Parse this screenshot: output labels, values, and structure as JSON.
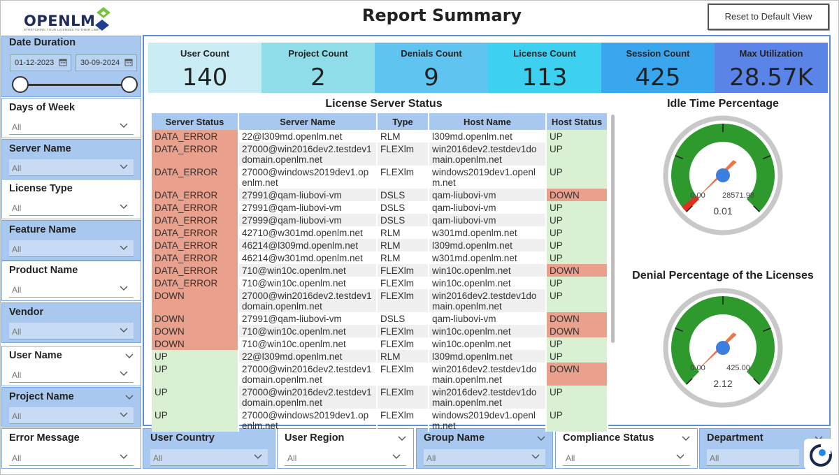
{
  "header": {
    "logo_text": "OPENLM",
    "logo_tagline": "STRETCHING YOUR LICENSES TO THEIR LIMIT",
    "title": "Report Summary",
    "reset_label": "Reset to Default View"
  },
  "filters": {
    "date_duration": {
      "label": "Date Duration",
      "start": "01-12-2023",
      "end": "30-09-2024"
    },
    "days_of_week": {
      "label": "Days of Week",
      "value": "All"
    },
    "server_name": {
      "label": "Server Name",
      "value": "All"
    },
    "license_type": {
      "label": "License Type",
      "value": "All"
    },
    "feature_name": {
      "label": "Feature Name",
      "value": "All"
    },
    "product_name": {
      "label": "Product Name",
      "value": "All"
    },
    "vendor": {
      "label": "Vendor",
      "value": "All"
    },
    "user_name": {
      "label": "User Name",
      "value": "All"
    },
    "project_name": {
      "label": "Project Name",
      "value": "All"
    },
    "error_message": {
      "label": "Error Message",
      "value": "All"
    },
    "user_country": {
      "label": "User Country",
      "value": "All"
    },
    "user_region": {
      "label": "User Region",
      "value": "All"
    },
    "group_name": {
      "label": "Group Name",
      "value": "All"
    },
    "compliance_status": {
      "label": "Compliance Status",
      "value": "All"
    },
    "department": {
      "label": "Department",
      "value": "All"
    }
  },
  "cards": [
    {
      "label": "User Count",
      "value": "140",
      "color": "#c9ecf5"
    },
    {
      "label": "Project Count",
      "value": "2",
      "color": "#8fdde8"
    },
    {
      "label": "Denials Count",
      "value": "9",
      "color": "#5fc4f0"
    },
    {
      "label": "License Count",
      "value": "113",
      "color": "#3dd0f0"
    },
    {
      "label": "Session Count",
      "value": "425",
      "color": "#3aa6ee"
    },
    {
      "label": "Max Utilization",
      "value": "28.57K",
      "color": "#5a84e8"
    }
  ],
  "table": {
    "title": "License Server Status",
    "columns": [
      "Server Status",
      "Server Name",
      "Type",
      "Host Name",
      "Host Status"
    ],
    "rows": [
      [
        "DATA_ERROR",
        "22@l309md.openlm.net",
        "RLM",
        "l309md.openlm.net",
        "UP"
      ],
      [
        "DATA_ERROR",
        "27000@win2016dev2.testdev1domain.openlm.net",
        "FLEXlm",
        "win2016dev2.testdev1domain.openlm.net",
        "UP"
      ],
      [
        "DATA_ERROR",
        "27000@windows2019dev1.openlm.net",
        "FLEXlm",
        "windows2019dev1.openlm.net",
        "UP"
      ],
      [
        "DATA_ERROR",
        "27991@qam-liubovi-vm",
        "DSLS",
        "qam-liubovi-vm",
        "DOWN"
      ],
      [
        "DATA_ERROR",
        "27991@qam-liubovi-vm",
        "DSLS",
        "qam-liubovi-vm",
        "UP"
      ],
      [
        "DATA_ERROR",
        "27999@qam-liubovi-vm",
        "DSLS",
        "qam-liubovi-vm",
        "UP"
      ],
      [
        "DATA_ERROR",
        "42710@w301md.openlm.net",
        "RLM",
        "w301md.openlm.net",
        "UP"
      ],
      [
        "DATA_ERROR",
        "46214@l309md.openlm.net",
        "RLM",
        "l309md.openlm.net",
        "UP"
      ],
      [
        "DATA_ERROR",
        "46214@w301md.openlm.net",
        "RLM",
        "w301md.openlm.net",
        "UP"
      ],
      [
        "DATA_ERROR",
        "710@win10c.openlm.net",
        "FLEXlm",
        "win10c.openlm.net",
        "DOWN"
      ],
      [
        "DATA_ERROR",
        "710@win10c.openlm.net",
        "FLEXlm",
        "win10c.openlm.net",
        "UP"
      ],
      [
        "DOWN",
        "27000@win2016dev2.testdev1domain.openlm.net",
        "FLEXlm",
        "win2016dev2.testdev1domain.openlm.net",
        "UP"
      ],
      [
        "DOWN",
        "27991@qam-liubovi-vm",
        "DSLS",
        "qam-liubovi-vm",
        "DOWN"
      ],
      [
        "DOWN",
        "710@win10c.openlm.net",
        "FLEXlm",
        "win10c.openlm.net",
        "DOWN"
      ],
      [
        "DOWN",
        "710@win10c.openlm.net",
        "FLEXlm",
        "win10c.openlm.net",
        "UP"
      ],
      [
        "UP",
        "22@l309md.openlm.net",
        "RLM",
        "l309md.openlm.net",
        "UP"
      ],
      [
        "UP",
        "27000@win2016dev2.testdev1domain.openlm.net",
        "FLEXlm",
        "win2016dev2.testdev1domain.openlm.net",
        "DOWN"
      ],
      [
        "UP",
        "27000@win2016dev2.testdev1domain.openlm.net",
        "FLEXlm",
        "win2016dev2.testdev1domain.openlm.net",
        "UP"
      ],
      [
        "UP",
        "27000@windows2019dev1.openlm.net",
        "FLEXlm",
        "windows2019dev1.openlm.net",
        "UP"
      ]
    ]
  },
  "gauges": [
    {
      "title": "Idle Time Percentage",
      "min": "0.00",
      "max": "28571.98",
      "value": "0.01",
      "fill_fraction": 4e-07,
      "target_fraction": 0.006
    },
    {
      "title": "Denial Percentage of the Licenses",
      "min": "0.00",
      "max": "425.00",
      "value": "2.12",
      "fill_fraction": 0.005,
      "target_fraction": 0.005
    }
  ],
  "colors": {
    "slicer_blue": "#a9c8f0",
    "panel_border": "#5b8fd0",
    "status_bad": "#e9a08c",
    "status_good": "#d9f0d3",
    "gauge_green": "#2e9a2e",
    "gauge_red": "#e0301e",
    "needle": "#e8774a",
    "pivot": "#3b7ee0"
  }
}
